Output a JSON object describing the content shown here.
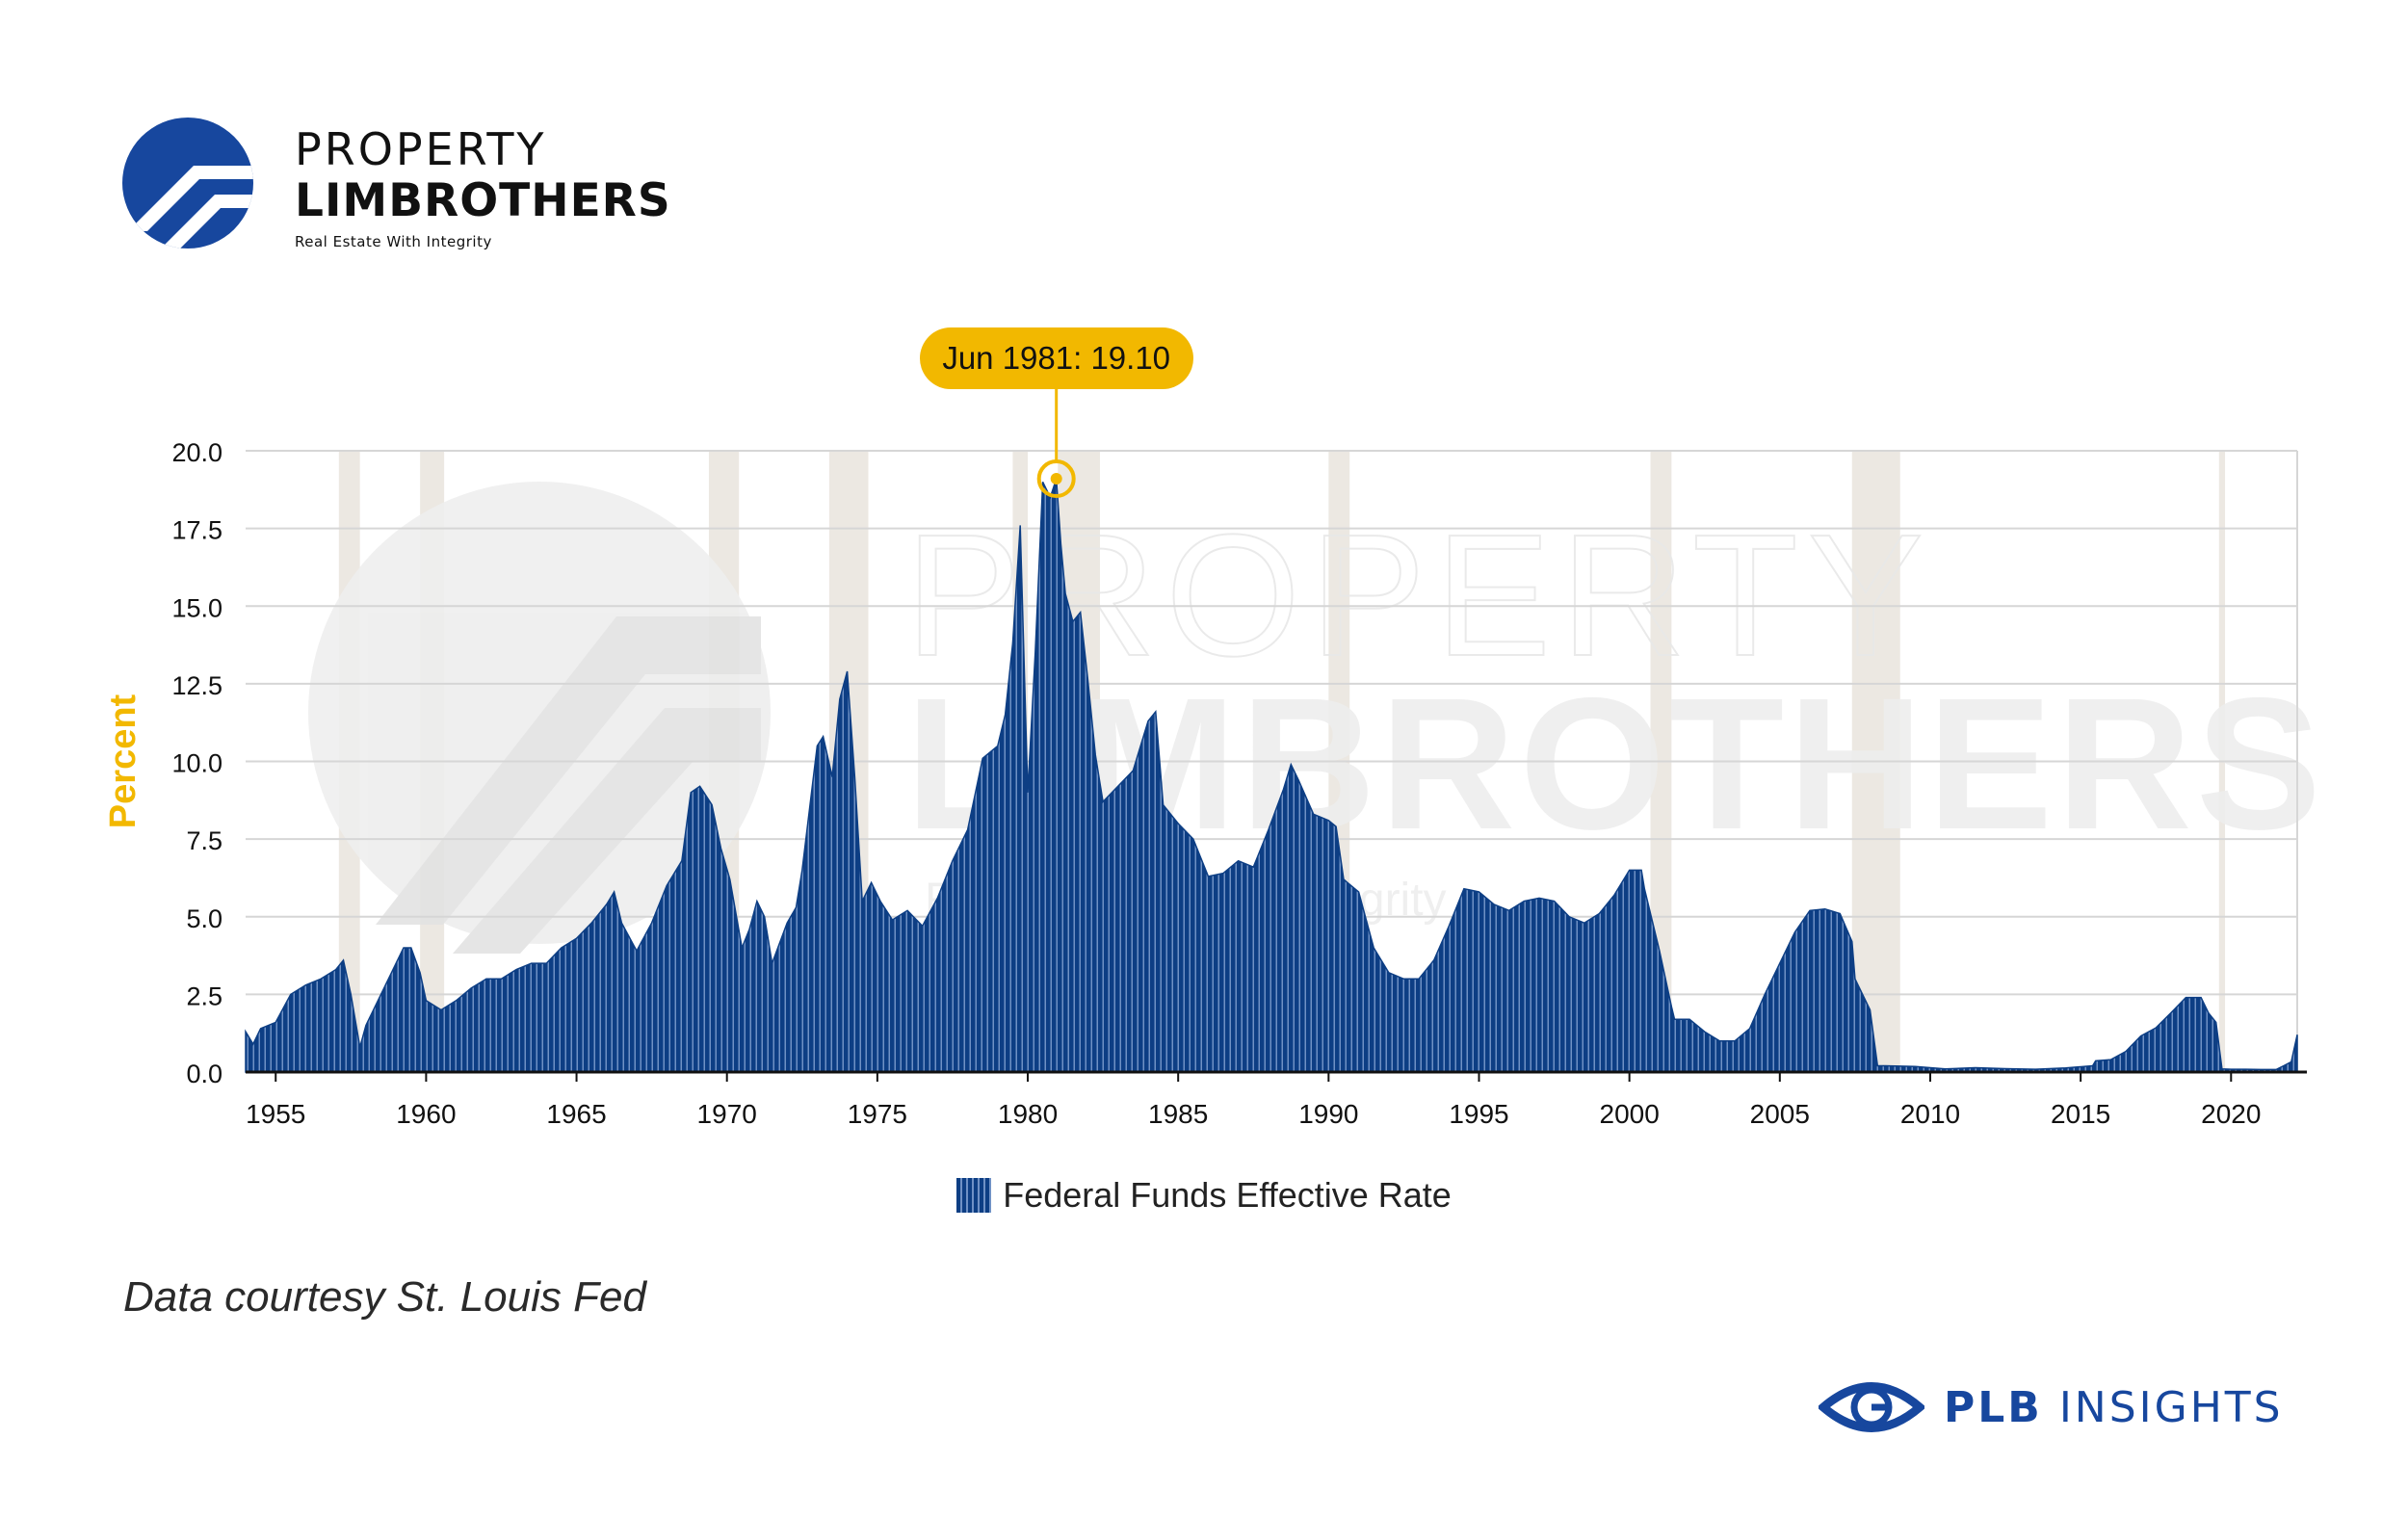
{
  "brand": {
    "name_line1": "PROPERTY",
    "name_line2": "LIMBROTHERS",
    "tagline": "Real Estate With Integrity",
    "watermark_line1": "PROPERTY",
    "watermark_line2": "LIMBROTHERS",
    "watermark_tagline": "Real Estate With Integrity"
  },
  "colors": {
    "series": "#0d3e84",
    "series_stripe": "#6f91c5",
    "recession_band": "#ece8e2",
    "accent": "#f2b800",
    "gridline": "#d6d6d6",
    "footer_brand": "#17479e",
    "logo": "#17479e"
  },
  "chart_data": {
    "type": "area",
    "title": "",
    "xlabel": "",
    "ylabel": "Percent",
    "xlim": [
      1954.5,
      2022.7
    ],
    "ylim": [
      0,
      20
    ],
    "yticks": [
      "0.0",
      "2.5",
      "5.0",
      "7.5",
      "10.0",
      "12.5",
      "15.0",
      "17.5",
      "20.0"
    ],
    "xticks": [
      "1955",
      "1960",
      "1965",
      "1970",
      "1975",
      "1980",
      "1985",
      "1990",
      "1995",
      "2000",
      "2005",
      "2010",
      "2015",
      "2020"
    ],
    "grid": "horizontal",
    "legend_position": "bottom-center",
    "series": [
      {
        "name": "Federal Funds Effective Rate",
        "x": [
          1954.5,
          1954.75,
          1955.0,
          1955.5,
          1956.0,
          1956.5,
          1957.0,
          1957.5,
          1957.75,
          1958.0,
          1958.3,
          1958.5,
          1959.0,
          1959.5,
          1959.75,
          1960.0,
          1960.3,
          1960.5,
          1961.0,
          1961.5,
          1962.0,
          1962.5,
          1963.0,
          1963.5,
          1964.0,
          1964.5,
          1965.0,
          1965.5,
          1966.0,
          1966.5,
          1966.75,
          1967.0,
          1967.5,
          1968.0,
          1968.5,
          1969.0,
          1969.3,
          1969.6,
          1970.0,
          1970.3,
          1970.6,
          1971.0,
          1971.25,
          1971.5,
          1971.75,
          1972.0,
          1972.5,
          1972.8,
          1973.0,
          1973.25,
          1973.5,
          1973.7,
          1974.0,
          1974.25,
          1974.5,
          1974.75,
          1975.0,
          1975.3,
          1975.6,
          1976.0,
          1976.5,
          1977.0,
          1977.5,
          1978.0,
          1978.5,
          1979.0,
          1979.5,
          1979.75,
          1980.0,
          1980.25,
          1980.5,
          1980.75,
          1981.0,
          1981.25,
          1981.45,
          1981.6,
          1981.75,
          1982.0,
          1982.25,
          1982.5,
          1982.75,
          1983.0,
          1983.5,
          1984.0,
          1984.5,
          1984.75,
          1985.0,
          1985.5,
          1986.0,
          1986.5,
          1987.0,
          1987.5,
          1988.0,
          1988.5,
          1989.0,
          1989.25,
          1989.5,
          1990.0,
          1990.5,
          1990.75,
          1991.0,
          1991.5,
          1992.0,
          1992.5,
          1993.0,
          1993.5,
          1994.0,
          1994.5,
          1995.0,
          1995.5,
          1996.0,
          1996.5,
          1997.0,
          1997.5,
          1998.0,
          1998.5,
          1999.0,
          1999.5,
          2000.0,
          2000.5,
          2000.9,
          2001.0,
          2001.5,
          2001.9,
          2002.0,
          2002.5,
          2003.0,
          2003.5,
          2004.0,
          2004.5,
          2005.0,
          2005.5,
          2006.0,
          2006.5,
          2007.0,
          2007.5,
          2007.9,
          2008.0,
          2008.5,
          2008.75,
          2009.0,
          2010.0,
          2011.0,
          2012.0,
          2013.0,
          2014.0,
          2015.0,
          2015.9,
          2016.0,
          2016.5,
          2017.0,
          2017.5,
          2018.0,
          2018.5,
          2019.0,
          2019.5,
          2019.75,
          2020.0,
          2020.2,
          2020.5,
          2021.0,
          2021.5,
          2022.0,
          2022.25,
          2022.5,
          2022.7
        ],
        "y": [
          1.3,
          0.9,
          1.4,
          1.6,
          2.5,
          2.8,
          3.0,
          3.3,
          3.6,
          2.5,
          0.8,
          1.5,
          2.5,
          3.5,
          4.0,
          4.0,
          3.2,
          2.3,
          2.0,
          2.3,
          2.7,
          3.0,
          3.0,
          3.3,
          3.5,
          3.5,
          4.0,
          4.3,
          4.8,
          5.4,
          5.8,
          4.8,
          3.9,
          4.8,
          6.0,
          6.8,
          9.0,
          9.2,
          8.6,
          7.2,
          6.2,
          4.0,
          4.6,
          5.5,
          5.0,
          3.5,
          4.8,
          5.3,
          6.5,
          8.5,
          10.5,
          10.8,
          9.5,
          12.0,
          12.9,
          9.5,
          5.5,
          6.1,
          5.5,
          4.9,
          5.2,
          4.7,
          5.6,
          6.8,
          7.8,
          10.1,
          10.5,
          11.5,
          13.8,
          17.6,
          9.0,
          13.5,
          19.0,
          18.5,
          19.1,
          17.0,
          15.4,
          14.5,
          14.8,
          12.6,
          10.2,
          8.7,
          9.2,
          9.7,
          11.3,
          11.6,
          8.6,
          8.0,
          7.5,
          6.3,
          6.4,
          6.8,
          6.6,
          7.8,
          9.1,
          9.9,
          9.4,
          8.3,
          8.1,
          7.9,
          6.2,
          5.8,
          4.0,
          3.2,
          3.0,
          3.0,
          3.6,
          4.7,
          5.9,
          5.8,
          5.4,
          5.2,
          5.5,
          5.6,
          5.5,
          5.0,
          4.8,
          5.1,
          5.7,
          6.5,
          6.5,
          5.9,
          3.9,
          2.1,
          1.7,
          1.7,
          1.3,
          1.0,
          1.0,
          1.4,
          2.5,
          3.5,
          4.5,
          5.2,
          5.25,
          5.1,
          4.2,
          3.0,
          2.0,
          0.2,
          0.2,
          0.18,
          0.1,
          0.14,
          0.11,
          0.09,
          0.13,
          0.2,
          0.36,
          0.4,
          0.66,
          1.16,
          1.42,
          1.9,
          2.4,
          2.4,
          1.9,
          1.6,
          0.1,
          0.09,
          0.09,
          0.08,
          0.08,
          0.2,
          0.33,
          1.2
        ]
      }
    ],
    "recession_bands": [
      [
        1957.6,
        1958.3
      ],
      [
        1960.3,
        1961.1
      ],
      [
        1969.9,
        1970.9
      ],
      [
        1973.9,
        1975.2
      ],
      [
        1980.0,
        1980.5
      ],
      [
        1981.5,
        1982.9
      ],
      [
        1990.5,
        1991.2
      ],
      [
        2001.2,
        2001.9
      ],
      [
        2007.9,
        2009.5
      ],
      [
        2020.1,
        2020.3
      ]
    ],
    "annotation": {
      "label": "Jun 1981: 19.10",
      "x": 1981.45,
      "y": 19.1
    }
  },
  "footer": {
    "source_note": "Data courtesy St. Louis Fed",
    "brand_bold": "PLB",
    "brand_rest": " INSIGHTS"
  }
}
